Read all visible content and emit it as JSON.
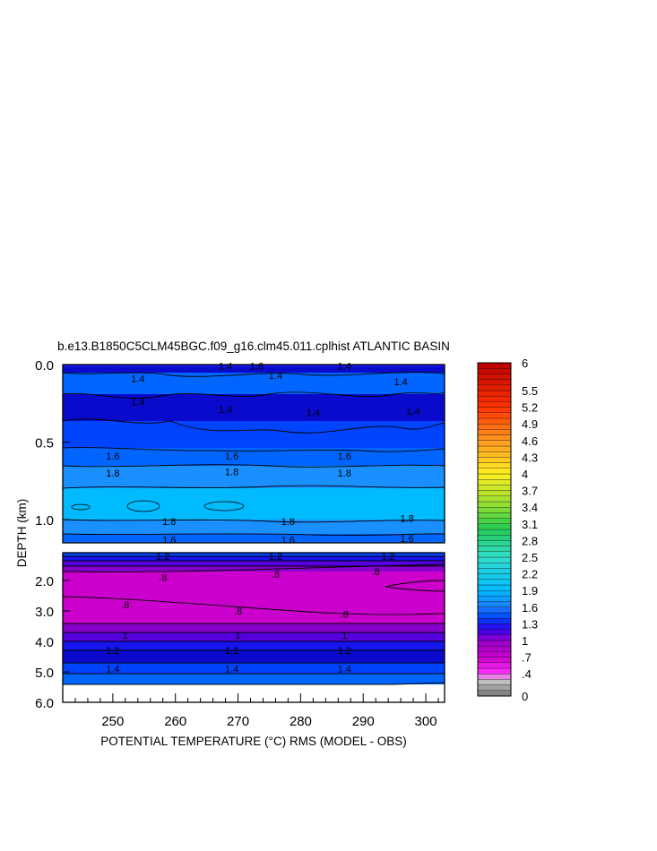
{
  "chart_data": {
    "type": "heatmap",
    "title": "b.e13.B1850C5CLM45BGC.f09_g16.clm45.011.cplhist ATLANTIC BASIN",
    "xlabel": "POTENTIAL TEMPERATURE (°C) RMS (MODEL - OBS)",
    "ylabel": "DEPTH (km)",
    "xlim": [
      242,
      303
    ],
    "x_ticks": [
      250,
      260,
      270,
      280,
      290,
      300
    ],
    "upper_panel": {
      "ylim": [
        0.0,
        1.15
      ],
      "y_ticks": [
        "0.0",
        "0.5",
        "1.0"
      ],
      "y_tick_values": [
        0.0,
        0.5,
        1.0
      ],
      "contour_labels": [
        {
          "x": 268,
          "y": 0.01,
          "text": "1.4"
        },
        {
          "x": 273,
          "y": 0.01,
          "text": "1.6"
        },
        {
          "x": 287,
          "y": 0.01,
          "text": "1.4"
        },
        {
          "x": 254,
          "y": 0.09,
          "text": "1.4"
        },
        {
          "x": 276,
          "y": 0.07,
          "text": "1.4"
        },
        {
          "x": 296,
          "y": 0.11,
          "text": "1.4"
        },
        {
          "x": 254,
          "y": 0.24,
          "text": "1.4"
        },
        {
          "x": 268,
          "y": 0.29,
          "text": "1.4"
        },
        {
          "x": 282,
          "y": 0.31,
          "text": "1.4"
        },
        {
          "x": 298,
          "y": 0.3,
          "text": "1.4"
        },
        {
          "x": 250,
          "y": 0.59,
          "text": "1.6"
        },
        {
          "x": 269,
          "y": 0.59,
          "text": "1.6"
        },
        {
          "x": 287,
          "y": 0.59,
          "text": "1.6"
        },
        {
          "x": 250,
          "y": 0.7,
          "text": "1.8"
        },
        {
          "x": 269,
          "y": 0.69,
          "text": "1.8"
        },
        {
          "x": 287,
          "y": 0.7,
          "text": "1.8"
        },
        {
          "x": 259,
          "y": 1.01,
          "text": "1.8"
        },
        {
          "x": 278,
          "y": 1.01,
          "text": "1.8"
        },
        {
          "x": 297,
          "y": 0.99,
          "text": "1.8"
        },
        {
          "x": 259,
          "y": 1.13,
          "text": "1.6"
        },
        {
          "x": 278,
          "y": 1.13,
          "text": "1.6"
        },
        {
          "x": 297,
          "y": 1.12,
          "text": "1.6"
        }
      ]
    },
    "lower_panel": {
      "ylim": [
        1.0,
        6.0
      ],
      "y_ticks": [
        "2.0",
        "3.0",
        "4.0",
        "5.0",
        "6.0"
      ],
      "y_tick_values": [
        2.0,
        3.0,
        4.0,
        5.0,
        6.0
      ],
      "contour_labels": [
        {
          "x": 258,
          "y": 1.2,
          "text": "1.2"
        },
        {
          "x": 276,
          "y": 1.2,
          "text": "1.2"
        },
        {
          "x": 294,
          "y": 1.2,
          "text": "1.2"
        },
        {
          "x": 258,
          "y": 1.9,
          "text": ".8"
        },
        {
          "x": 276,
          "y": 1.8,
          "text": ".8"
        },
        {
          "x": 292,
          "y": 1.7,
          "text": ".8"
        },
        {
          "x": 252,
          "y": 2.8,
          "text": ".8"
        },
        {
          "x": 270,
          "y": 3.0,
          "text": ".8"
        },
        {
          "x": 287,
          "y": 3.1,
          "text": ".8"
        },
        {
          "x": 252,
          "y": 3.8,
          "text": "1"
        },
        {
          "x": 270,
          "y": 3.8,
          "text": "1"
        },
        {
          "x": 287,
          "y": 3.8,
          "text": "1"
        },
        {
          "x": 250,
          "y": 4.3,
          "text": "1.2"
        },
        {
          "x": 269,
          "y": 4.3,
          "text": "1.2"
        },
        {
          "x": 287,
          "y": 4.3,
          "text": "1.2"
        },
        {
          "x": 250,
          "y": 4.9,
          "text": "1.4"
        },
        {
          "x": 269,
          "y": 4.9,
          "text": "1.4"
        },
        {
          "x": 287,
          "y": 4.9,
          "text": "1.4"
        }
      ]
    },
    "colorbar": {
      "range": [
        0,
        6
      ],
      "tick_labels": [
        "6",
        "5.5",
        "5.2",
        "4.9",
        "4.6",
        "4.3",
        "4",
        "3.7",
        "3.4",
        "3.1",
        "2.8",
        "2.5",
        "2.2",
        "1.9",
        "1.6",
        "1.3",
        "1",
        ".7",
        ".4",
        "0"
      ],
      "tick_values": [
        6,
        5.5,
        5.2,
        4.9,
        4.6,
        4.3,
        4,
        3.7,
        3.4,
        3.1,
        2.8,
        2.5,
        2.2,
        1.9,
        1.6,
        1.3,
        1,
        0.7,
        0.4,
        0
      ],
      "stops": [
        {
          "v": 0.0,
          "c": "#777777"
        },
        {
          "v": 0.3,
          "c": "#cccccc"
        },
        {
          "v": 0.4,
          "c": "#ff33ff"
        },
        {
          "v": 0.7,
          "c": "#cc00cc"
        },
        {
          "v": 1.0,
          "c": "#9900cc"
        },
        {
          "v": 1.2,
          "c": "#3300ee"
        },
        {
          "v": 1.4,
          "c": "#0044ff"
        },
        {
          "v": 1.6,
          "c": "#1a7dff"
        },
        {
          "v": 1.9,
          "c": "#00bbff"
        },
        {
          "v": 2.5,
          "c": "#33ddcc"
        },
        {
          "v": 3.0,
          "c": "#22cc55"
        },
        {
          "v": 3.4,
          "c": "#88dd33"
        },
        {
          "v": 4.0,
          "c": "#ffee22"
        },
        {
          "v": 4.6,
          "c": "#ff9922"
        },
        {
          "v": 5.2,
          "c": "#ff3300"
        },
        {
          "v": 6.0,
          "c": "#bb0000"
        }
      ]
    },
    "colors": {
      "magenta": "#cc00cc",
      "purple": "#8800cc",
      "violet": "#5500dd",
      "deep_blue": "#1515ee",
      "navy": "#0a0acc",
      "blue": "#0044ff",
      "mid_blue": "#0066ff",
      "light_blue": "#1a8fff",
      "cyan_blue": "#00bbff",
      "contour_line": "#000000"
    }
  }
}
